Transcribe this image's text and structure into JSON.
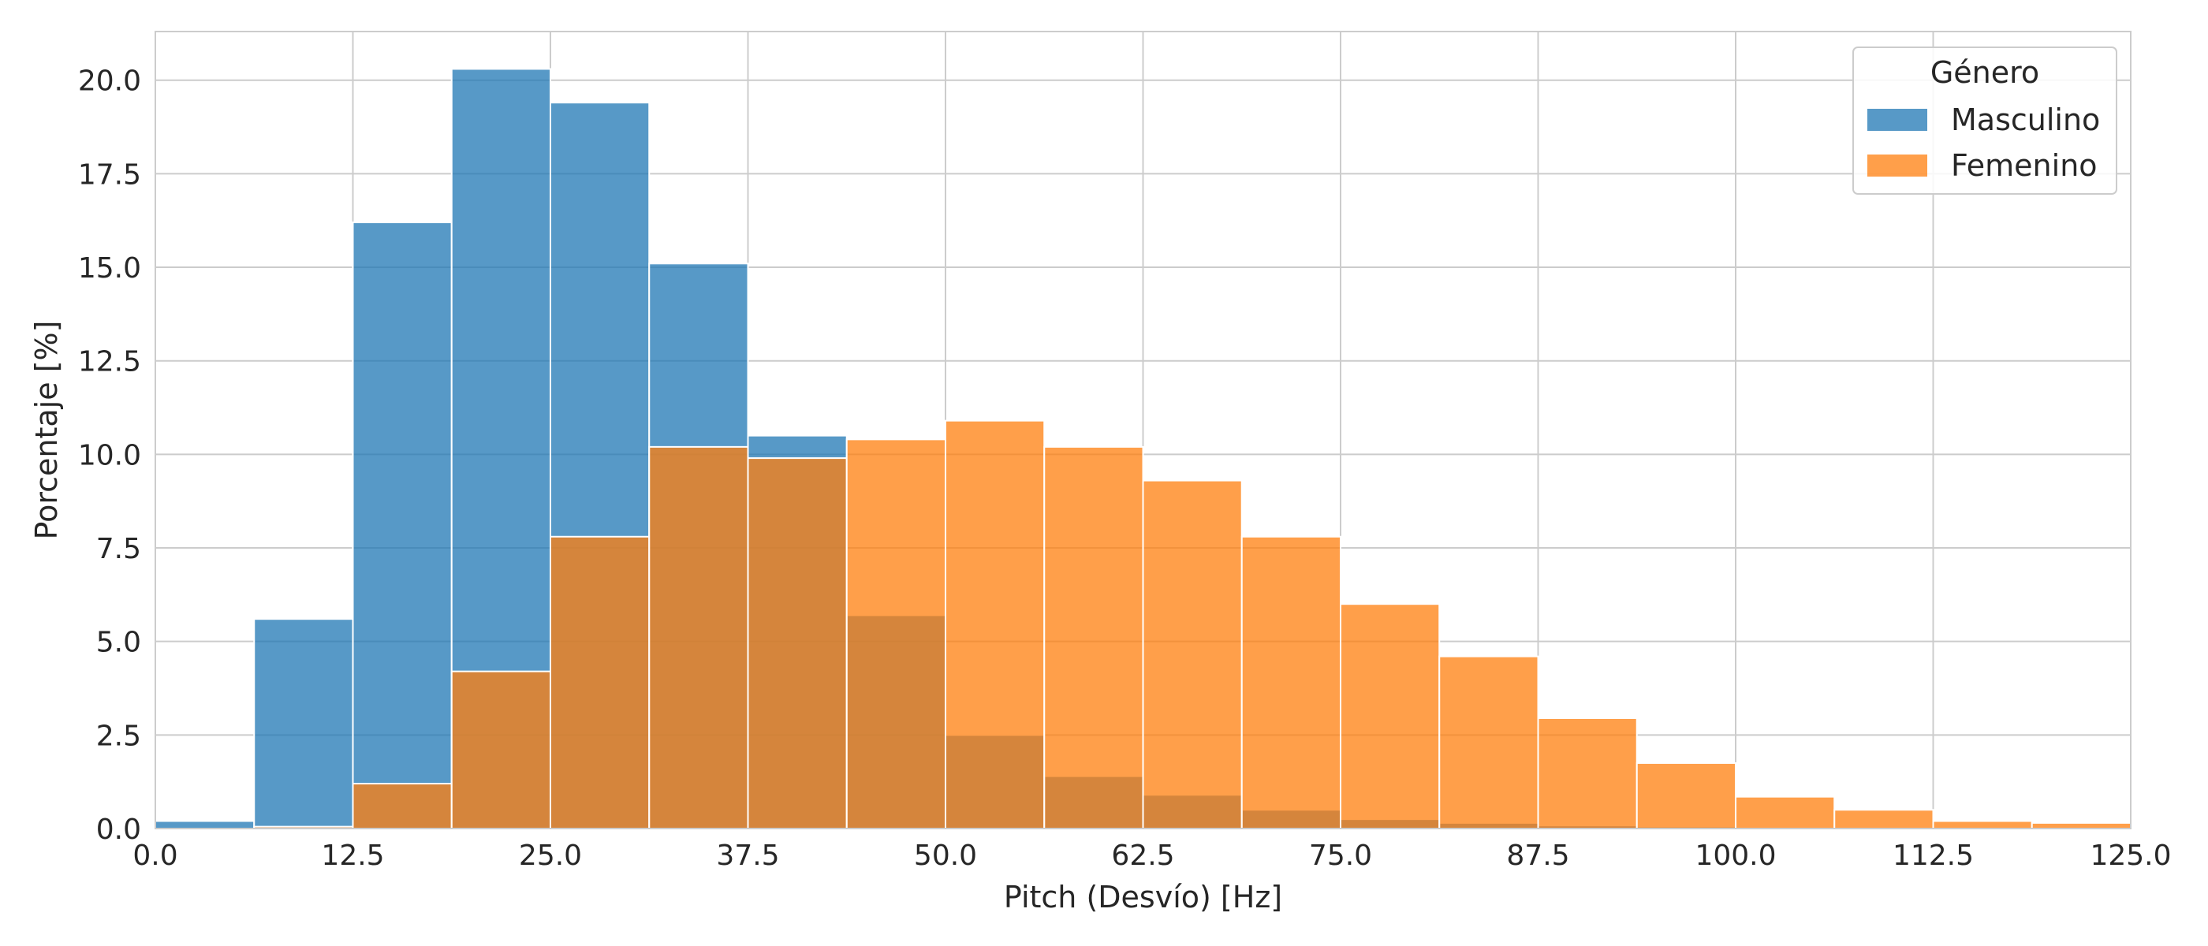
{
  "chart_data": {
    "type": "bar",
    "subtype": "overlaid-histogram",
    "xlabel": "Pitch (Desvío) [Hz]",
    "ylabel": "Porcentaje [%]",
    "xlim": [
      0.0,
      125.0
    ],
    "ylim": [
      0.0,
      21.3
    ],
    "xticks": [
      "0.0",
      "12.5",
      "25.0",
      "37.5",
      "50.0",
      "62.5",
      "75.0",
      "87.5",
      "100.0",
      "112.5",
      "125.0"
    ],
    "yticks": [
      "0.0",
      "2.5",
      "5.0",
      "7.5",
      "10.0",
      "12.5",
      "15.0",
      "17.5",
      "20.0"
    ],
    "grid": true,
    "legend": {
      "title": "Género",
      "placement": "top-right"
    },
    "bin_edges": [
      0,
      6.25,
      12.5,
      18.75,
      25,
      31.25,
      37.5,
      43.75,
      50,
      56.25,
      62.5,
      68.75,
      75,
      81.25,
      87.5,
      93.75,
      100,
      106.25,
      112.5,
      118.75,
      125
    ],
    "series": [
      {
        "name": "Masculino",
        "color": "#1f77b4",
        "values": [
          0.2,
          5.6,
          16.2,
          20.3,
          19.4,
          15.1,
          10.5,
          5.7,
          2.5,
          1.4,
          0.9,
          0.5,
          0.25,
          0.15,
          0.08,
          0.05,
          0.03,
          0.02,
          0.01,
          0.0
        ]
      },
      {
        "name": "Femenino",
        "color": "#ff7f0e",
        "values": [
          0.0,
          0.05,
          1.2,
          4.2,
          7.8,
          10.2,
          9.9,
          10.4,
          10.9,
          10.2,
          9.3,
          7.8,
          6.0,
          4.6,
          2.95,
          1.75,
          0.85,
          0.5,
          0.2,
          0.15
        ]
      }
    ]
  }
}
